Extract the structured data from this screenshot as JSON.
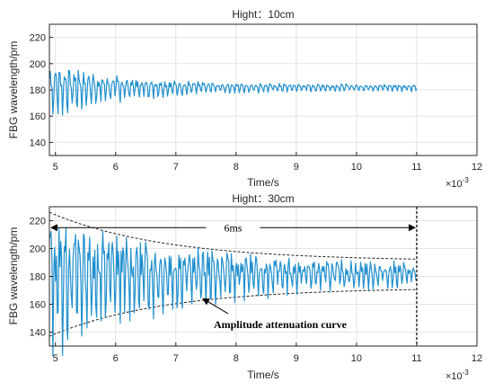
{
  "chart_data": [
    {
      "type": "line",
      "title": "Hight：10cm",
      "xlabel": "Time/s",
      "ylabel": "FBG wavelength/pm",
      "x_exponent_label": "×10",
      "x_exponent_power": "-3",
      "xlim": [
        4.9,
        12
      ],
      "ylim": [
        130,
        230
      ],
      "xticks": [
        5,
        6,
        7,
        8,
        9,
        10,
        11,
        12
      ],
      "yticks": [
        140,
        160,
        180,
        200,
        220
      ],
      "grid": true,
      "color": "#1f8fce",
      "signal": {
        "x_start": 4.9,
        "x_end": 11.0,
        "center": 180,
        "points": [
          [
            4.95,
            198
          ],
          [
            5.0,
            203
          ],
          [
            5.1,
            165
          ],
          [
            5.2,
            197
          ],
          [
            5.3,
            166
          ],
          [
            5.5,
            190
          ],
          [
            5.7,
            172
          ],
          [
            6.0,
            190
          ],
          [
            6.3,
            178
          ],
          [
            6.5,
            185
          ],
          [
            7.0,
            182
          ],
          [
            7.5,
            184
          ],
          [
            8.0,
            182
          ],
          [
            9.0,
            183
          ],
          [
            10.0,
            182
          ],
          [
            11.0,
            182
          ]
        ]
      },
      "annotations": []
    },
    {
      "type": "line",
      "title": "Hight：30cm",
      "xlabel": "Time/s",
      "ylabel": "FBG wavelength/pm",
      "x_exponent_label": "×10",
      "x_exponent_power": "-3",
      "xlim": [
        4.9,
        12
      ],
      "ylim": [
        130,
        230
      ],
      "xticks": [
        5,
        6,
        7,
        8,
        9,
        10,
        11,
        12
      ],
      "yticks": [
        140,
        160,
        180,
        200,
        220
      ],
      "grid": true,
      "color": "#1f8fce",
      "signal": {
        "x_start": 4.9,
        "x_end": 11.0,
        "center": 180,
        "points": [
          [
            4.95,
            220
          ],
          [
            5.05,
            140
          ],
          [
            5.2,
            205
          ],
          [
            5.4,
            150
          ],
          [
            5.8,
            215
          ],
          [
            6.3,
            158
          ],
          [
            7.0,
            200
          ],
          [
            7.4,
            163
          ],
          [
            8.0,
            190
          ],
          [
            9.0,
            188
          ],
          [
            10.0,
            186
          ],
          [
            11.0,
            184
          ]
        ]
      },
      "envelope": {
        "upper_start": 226,
        "lower_start": 137,
        "upper_end": 191,
        "lower_end": 172
      },
      "annotations": [
        {
          "text": "6ms",
          "x_from": 4.9,
          "x_to": 11.0,
          "y": 215
        },
        {
          "text": "Amplitude attenuation curve",
          "x": 7.45,
          "y": 152
        }
      ]
    }
  ]
}
